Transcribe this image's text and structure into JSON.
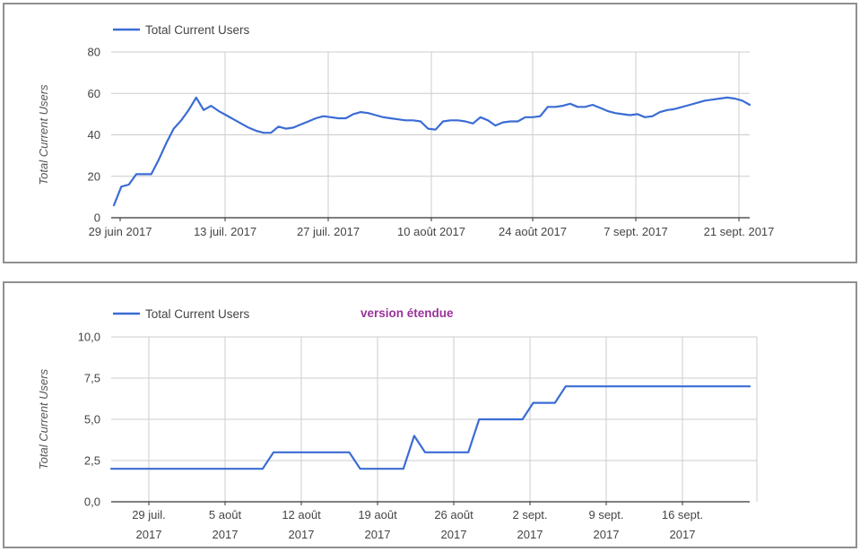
{
  "page": {
    "background": "#ffffff",
    "panel_border_color": "#8f8f8f"
  },
  "colors": {
    "line": "#3b6cd4",
    "grid": "#cccccc",
    "axis": "#333333",
    "tick_text": "#444444",
    "axis_title_text": "#555555",
    "annotation": "#993399"
  },
  "chart_data": [
    {
      "type": "line",
      "title": "",
      "legend_label": "Total Current Users",
      "ylabel": "Total Current Users",
      "xlabel": "",
      "grid": true,
      "legend_position": "top-left",
      "ylim": [
        0,
        80
      ],
      "y_tick_values": [
        80,
        60,
        40,
        20,
        0
      ],
      "y_tick_labels": [
        "80",
        "60",
        "40",
        "20",
        "0"
      ],
      "x_tick_labels": [
        "29 juin 2017",
        "13 juil. 2017",
        "27 juil. 2017",
        "10 août 2017",
        "24 août 2017",
        "7 sept. 2017",
        "21 sept. 2017"
      ],
      "x_start": "29 juin 2017",
      "x_interval": "daily (approx.)",
      "series": [
        {
          "name": "Total Current Users",
          "values": [
            6,
            15,
            16,
            21,
            21,
            21,
            28,
            36,
            43,
            47,
            52,
            58,
            52,
            54,
            51.5,
            49.5,
            47.5,
            45.5,
            43.5,
            42,
            41,
            41,
            44,
            43,
            43.5,
            45,
            46.5,
            48,
            49,
            48.5,
            48,
            48,
            50,
            51,
            50.5,
            49.5,
            48.5,
            48,
            47.5,
            47,
            47,
            46.5,
            43,
            42.5,
            46.5,
            47,
            47,
            46.5,
            45.5,
            48.5,
            47,
            44.5,
            46,
            46.5,
            46.5,
            48.5,
            48.5,
            49,
            53.5,
            53.5,
            54,
            55,
            53.5,
            53.5,
            54.5,
            53,
            51.5,
            50.5,
            50,
            49.5,
            50,
            48.5,
            49,
            51,
            52,
            52.5,
            53.5,
            54.5,
            55.5,
            56.5,
            57,
            57.5,
            58,
            57.5,
            56.5,
            54.5
          ]
        }
      ]
    },
    {
      "type": "line",
      "title": "",
      "annotation": "version étendue",
      "legend_label": "Total Current Users",
      "ylabel": "Total Current Users",
      "xlabel": "",
      "grid": true,
      "legend_position": "top-left",
      "ylim": [
        0,
        10
      ],
      "y_tick_values": [
        10,
        7.5,
        5,
        2.5,
        0
      ],
      "y_tick_labels": [
        "10,0",
        "7,5",
        "5,0",
        "2,5",
        "0,0"
      ],
      "x_tick_labels": [
        [
          "29 juil.",
          "2017"
        ],
        [
          "5 août",
          "2017"
        ],
        [
          "12 août",
          "2017"
        ],
        [
          "19 août",
          "2017"
        ],
        [
          "26 août",
          "2017"
        ],
        [
          "2 sept.",
          "2017"
        ],
        [
          "9 sept.",
          "2017"
        ],
        [
          "16 sept.",
          "2017"
        ]
      ],
      "x_start": "26 juil. 2017",
      "x_interval": "daily (approx.)",
      "series": [
        {
          "name": "Total Current Users",
          "values": [
            2,
            2,
            2,
            2,
            2,
            2,
            2,
            2,
            2,
            2,
            2,
            2,
            2,
            2,
            2,
            3,
            3,
            3,
            3,
            3,
            3,
            3,
            3,
            2,
            2,
            2,
            2,
            2,
            4,
            3,
            3,
            3,
            3,
            3,
            5,
            5,
            5,
            5,
            5,
            6,
            6,
            6,
            7,
            7,
            7,
            7,
            7,
            7,
            7,
            7,
            7,
            7,
            7,
            7,
            7,
            7,
            7,
            7,
            7,
            7
          ]
        }
      ]
    }
  ]
}
